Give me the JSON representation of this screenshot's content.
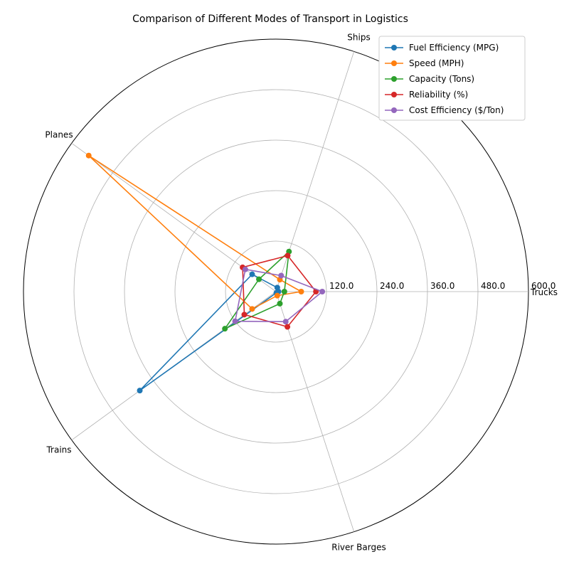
{
  "chart_data": {
    "type": "radar",
    "title": "Comparison of Different Modes of Transport in Logistics",
    "categories": [
      "Trucks",
      "Ships",
      "Planes",
      "Trains",
      "River Barges"
    ],
    "rmax": 600,
    "rticks": [
      120,
      240,
      360,
      480,
      600
    ],
    "rtick_labels": [
      "120.0",
      "240.0",
      "360.0",
      "480.0",
      "600.0"
    ],
    "grid": true,
    "legend_position": "top-right",
    "series": [
      {
        "name": "Fuel Efficiency (MPG)",
        "color": "#1f77b4",
        "values": [
          6,
          10,
          70,
          400,
          3
        ]
      },
      {
        "name": "Speed (MPH)",
        "color": "#ff7f0e",
        "values": [
          60,
          30,
          550,
          70,
          10
        ]
      },
      {
        "name": "Capacity (Tons)",
        "color": "#2ca02c",
        "values": [
          20,
          100,
          50,
          150,
          30
        ]
      },
      {
        "name": "Reliability (%)",
        "color": "#d62728",
        "values": [
          95,
          90,
          98,
          93,
          88
        ]
      },
      {
        "name": "Cost Efficiency ($/Ton)",
        "color": "#9467bd",
        "values": [
          110,
          40,
          90,
          120,
          75
        ]
      }
    ]
  }
}
